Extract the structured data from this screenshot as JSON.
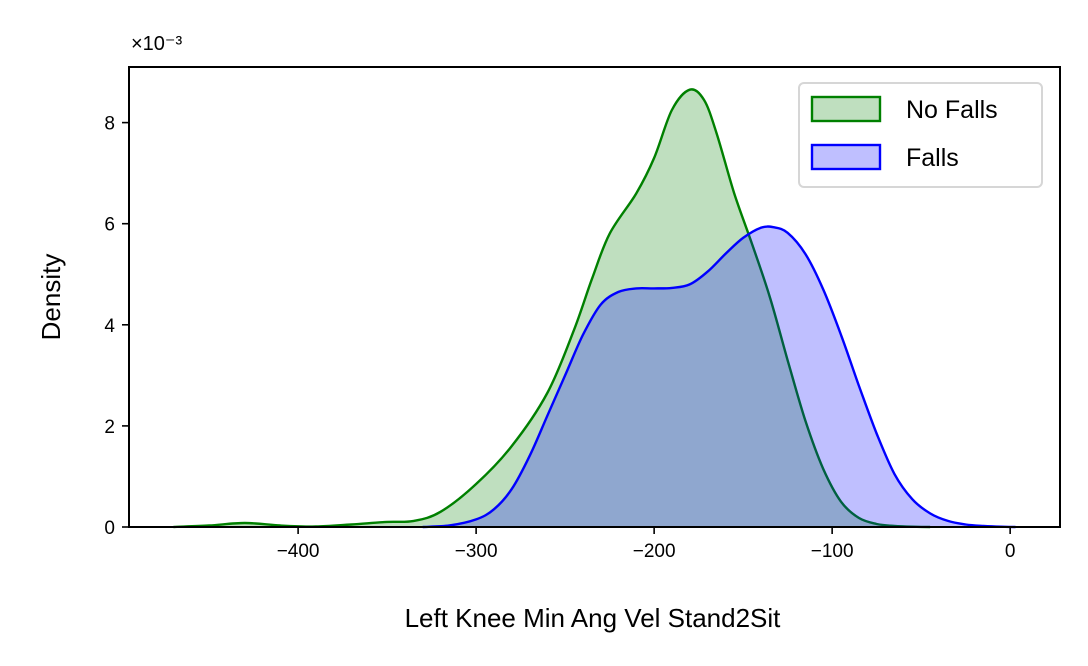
{
  "chart_data": {
    "type": "area",
    "xlabel": "Left Knee Min Ang Vel Stand2Sit",
    "ylabel": "Density",
    "y_scale_label": "×10⁻³",
    "xlim": [
      -495,
      28
    ],
    "ylim": [
      0,
      9.1
    ],
    "xticks": [
      -400,
      -300,
      -200,
      -100,
      0
    ],
    "xtick_labels": [
      "−400",
      "−300",
      "−200",
      "−100",
      "0"
    ],
    "yticks": [
      0,
      2,
      4,
      6,
      8
    ],
    "ytick_labels": [
      "0",
      "2",
      "4",
      "6",
      "8"
    ],
    "legend_position": "top-right",
    "grid": false,
    "series": [
      {
        "name": "No Falls",
        "color": "#008000",
        "fill": "#008000",
        "x": [
          -470,
          -450,
          -430,
          -410,
          -390,
          -370,
          -350,
          -335,
          -320,
          -300,
          -280,
          -260,
          -245,
          -235,
          -225,
          -210,
          -200,
          -190,
          -180,
          -172,
          -165,
          -155,
          -145,
          -135,
          -125,
          -115,
          -105,
          -95,
          -85,
          -75,
          -65,
          -55,
          -45
        ],
        "values": [
          0.0,
          0.03,
          0.08,
          0.03,
          0.01,
          0.05,
          0.1,
          0.12,
          0.3,
          0.85,
          1.6,
          2.65,
          3.9,
          4.9,
          5.8,
          6.6,
          7.3,
          8.25,
          8.65,
          8.45,
          7.8,
          6.6,
          5.6,
          4.55,
          3.3,
          2.1,
          1.15,
          0.5,
          0.18,
          0.06,
          0.02,
          0.005,
          0.0
        ]
      },
      {
        "name": "Falls",
        "color": "#0000ff",
        "fill": "#0000ff",
        "x": [
          -330,
          -315,
          -300,
          -290,
          -280,
          -270,
          -260,
          -250,
          -240,
          -230,
          -220,
          -210,
          -200,
          -190,
          -180,
          -170,
          -160,
          -150,
          -140,
          -133,
          -125,
          -115,
          -105,
          -95,
          -85,
          -75,
          -65,
          -55,
          -45,
          -35,
          -25,
          -15,
          -5,
          3
        ],
        "values": [
          0.0,
          0.03,
          0.15,
          0.35,
          0.75,
          1.4,
          2.2,
          3.0,
          3.8,
          4.4,
          4.65,
          4.72,
          4.72,
          4.73,
          4.8,
          5.05,
          5.4,
          5.72,
          5.92,
          5.93,
          5.82,
          5.4,
          4.7,
          3.8,
          2.8,
          1.85,
          1.05,
          0.55,
          0.27,
          0.12,
          0.05,
          0.02,
          0.005,
          0.0
        ]
      }
    ]
  }
}
